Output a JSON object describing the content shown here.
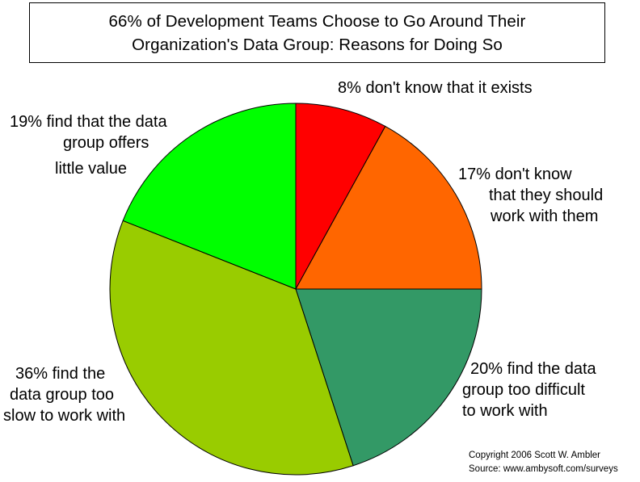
{
  "chart_data": {
    "type": "pie",
    "title": [
      "66% of Development Teams Choose to Go Around Their",
      "Organization's Data Group: Reasons for Doing So"
    ],
    "slices": [
      {
        "value": 8,
        "color": "#ff0000",
        "label": [
          "8%  don't know that it exists"
        ]
      },
      {
        "value": 17,
        "color": "#ff6600",
        "label": [
          "17%  don't know",
          "that they should",
          "work with them"
        ]
      },
      {
        "value": 20,
        "color": "#339966",
        "label": [
          "20% find the data",
          "group too difficult",
          "to work with"
        ]
      },
      {
        "value": 36,
        "color": "#99cc00",
        "label": [
          "36% find the",
          "data group too",
          "slow to work with"
        ]
      },
      {
        "value": 19,
        "color": "#00ff00",
        "label": [
          "19% find that the data",
          "group offers",
          "little value"
        ]
      }
    ]
  },
  "copyright": {
    "line1": "Copyright 2006 Scott W. Ambler",
    "line2": "Source: www.ambysoft.com/surveys"
  }
}
